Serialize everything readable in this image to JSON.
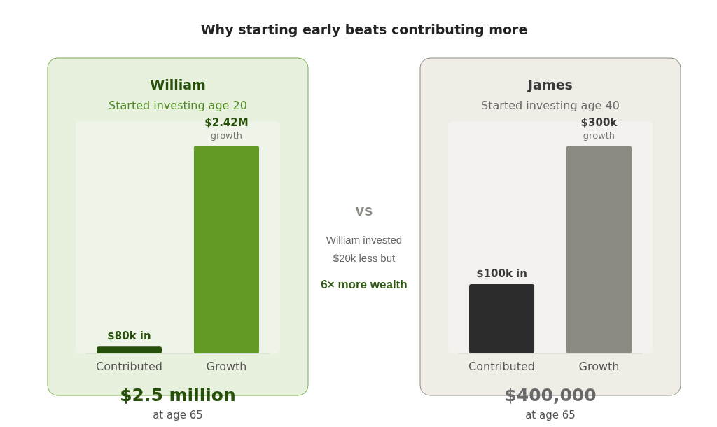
{
  "chart_data": [
    {
      "type": "bar",
      "title": "William",
      "subtitle": "Started investing age 20",
      "categories": [
        "Contributed",
        "Growth"
      ],
      "values": [
        80000,
        2420000
      ],
      "colors": [
        "#264f0a",
        "#629a25"
      ],
      "value_labels": [
        "$80k in",
        "$2.42M\ngrowth"
      ],
      "annotations": [
        "$2.5 million",
        "at age 65"
      ]
    },
    {
      "type": "other",
      "title": "Why starting early beats contributing more",
      "annotations": [
        "vs",
        "William invested\n$20k less but",
        "6× more wealth"
      ]
    },
    {
      "type": "bar",
      "title": "James",
      "subtitle": "Started investing age 40",
      "categories": [
        "Contributed",
        "Growth"
      ],
      "values": [
        100000,
        300000
      ],
      "colors": [
        "#2c2c2c",
        "#8a8a82"
      ],
      "value_labels": [
        "$100k in",
        "$300k\ngrowth"
      ],
      "annotations": [
        "$400,000",
        "at age 65"
      ]
    }
  ]
}
